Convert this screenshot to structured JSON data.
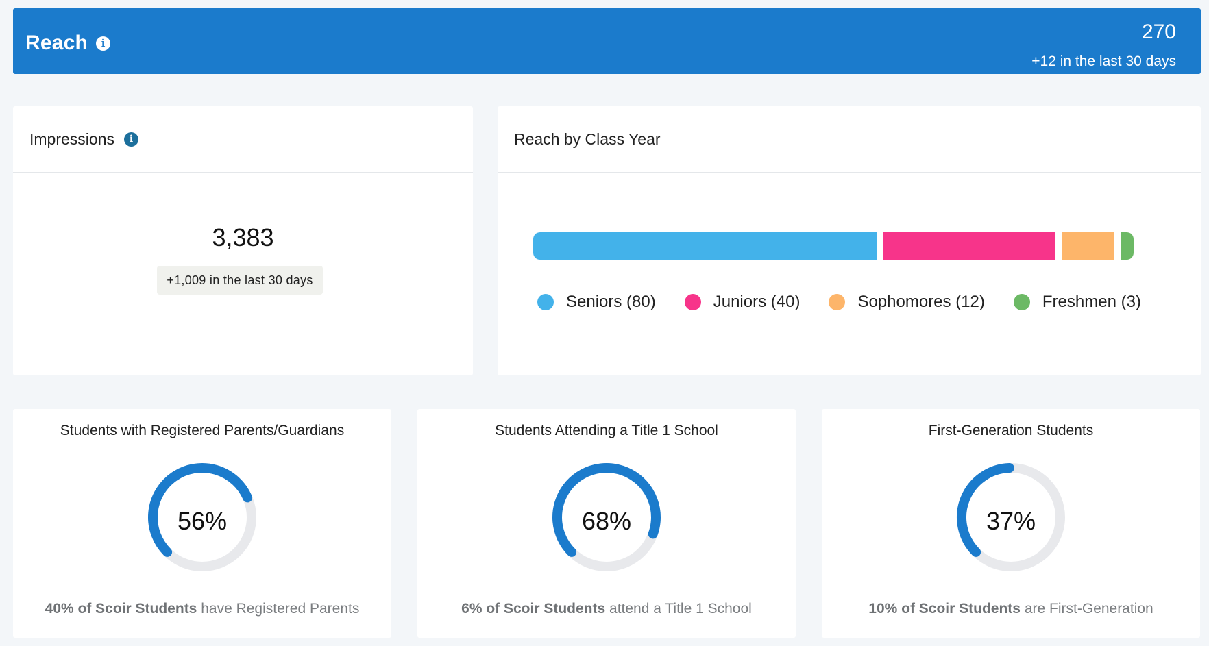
{
  "reach": {
    "title": "Reach",
    "info_icon": "info-icon",
    "total": "270",
    "delta": "+12 in the last 30 days",
    "color": "#1b7bcc"
  },
  "impressions": {
    "title": "Impressions",
    "value": "3,383",
    "delta": "+1,009 in the last 30 days"
  },
  "class_year": {
    "title": "Reach by Class Year",
    "segments": [
      {
        "label": "Seniors (80)",
        "value": 80,
        "color": "#43b2ea"
      },
      {
        "label": "Juniors (40)",
        "value": 40,
        "color": "#f7348a"
      },
      {
        "label": "Sophomores (12)",
        "value": 12,
        "color": "#fdb56a"
      },
      {
        "label": "Freshmen (3)",
        "value": 3,
        "color": "#6cb965"
      }
    ]
  },
  "donuts": [
    {
      "title": "Students with Registered Parents/Guardians",
      "percent_label": "56%",
      "percent": 56,
      "foot_bold": "40% of Scoir Students",
      "foot_rest": " have Registered Parents"
    },
    {
      "title": "Students Attending a Title 1 School",
      "percent_label": "68%",
      "percent": 68,
      "foot_bold": "6% of Scoir Students",
      "foot_rest": " attend a Title 1 School"
    },
    {
      "title": "First-Generation Students",
      "percent_label": "37%",
      "percent": 37,
      "foot_bold": "10% of Scoir Students",
      "foot_rest": " are First-Generation"
    }
  ],
  "colors": {
    "donut_fill": "#1b7bcc",
    "donut_track": "#e8e9ec",
    "background": "#f3f6f9"
  }
}
